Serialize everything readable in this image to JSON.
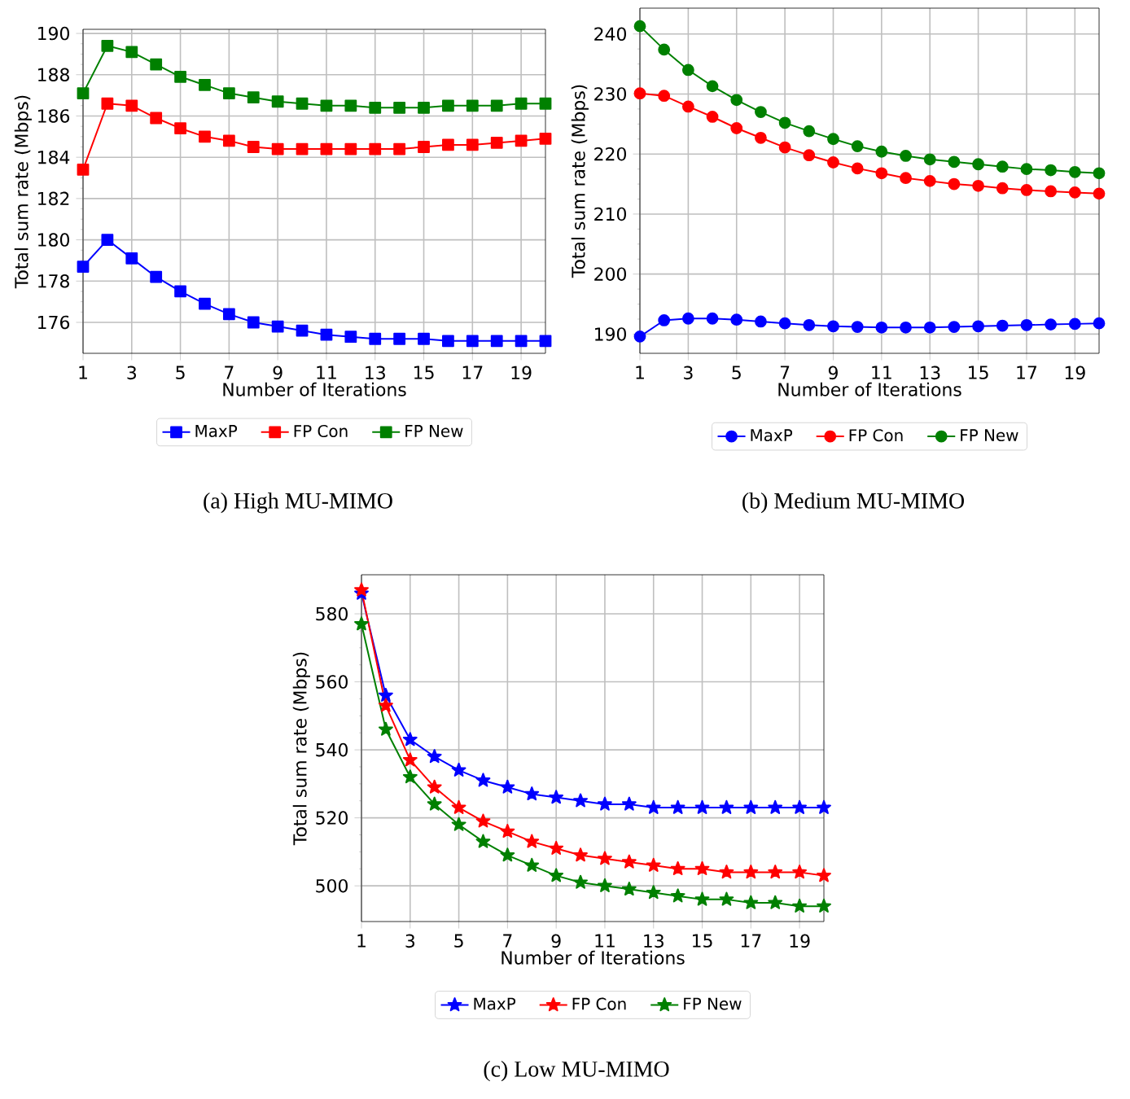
{
  "chart_data": [
    {
      "type": "line",
      "xlabel": "Number of Iterations",
      "ylabel": "Total sum rate (Mbps)",
      "annotations": [
        "(a) High MU-MIMO"
      ],
      "x": [
        1,
        2,
        3,
        4,
        5,
        6,
        7,
        8,
        9,
        10,
        11,
        12,
        13,
        14,
        15,
        16,
        17,
        18,
        19,
        20
      ],
      "xlim": [
        1,
        20
      ],
      "xticks": [
        1,
        3,
        5,
        7,
        9,
        11,
        13,
        15,
        17,
        19
      ],
      "ylim": [
        174.5,
        190.2
      ],
      "yticks": [
        176,
        178,
        180,
        182,
        184,
        186,
        188,
        190
      ],
      "grid": true,
      "legend": "bottom",
      "marker": "square",
      "line_style": "solid",
      "series": [
        {
          "name": "MaxP",
          "color": "#0000ff",
          "values": [
            178.7,
            180.0,
            179.1,
            178.2,
            177.5,
            176.9,
            176.4,
            176.0,
            175.8,
            175.6,
            175.4,
            175.3,
            175.2,
            175.2,
            175.2,
            175.1,
            175.1,
            175.1,
            175.1,
            175.1
          ]
        },
        {
          "name": "FP Con",
          "color": "#ff0000",
          "values": [
            183.4,
            186.6,
            186.5,
            185.9,
            185.4,
            185.0,
            184.8,
            184.5,
            184.4,
            184.4,
            184.4,
            184.4,
            184.4,
            184.4,
            184.5,
            184.6,
            184.6,
            184.7,
            184.8,
            184.9
          ]
        },
        {
          "name": "FP New",
          "color": "#008000",
          "values": [
            187.1,
            189.4,
            189.1,
            188.5,
            187.9,
            187.5,
            187.1,
            186.9,
            186.7,
            186.6,
            186.5,
            186.5,
            186.4,
            186.4,
            186.4,
            186.5,
            186.5,
            186.5,
            186.6,
            186.6
          ]
        }
      ]
    },
    {
      "type": "line",
      "xlabel": "Number of Iterations",
      "ylabel": "Total sum rate (Mbps)",
      "annotations": [
        "(b) Medium MU-MIMO"
      ],
      "x": [
        1,
        2,
        3,
        4,
        5,
        6,
        7,
        8,
        9,
        10,
        11,
        12,
        13,
        14,
        15,
        16,
        17,
        18,
        19,
        20
      ],
      "xlim": [
        1,
        20
      ],
      "xticks": [
        1,
        3,
        5,
        7,
        9,
        11,
        13,
        15,
        17,
        19
      ],
      "ylim": [
        186.8,
        244.3
      ],
      "yticks": [
        190,
        200,
        210,
        220,
        230,
        240
      ],
      "grid": true,
      "legend": "bottom",
      "marker": "circle",
      "line_style": "solid",
      "series": [
        {
          "name": "MaxP",
          "color": "#0000ff",
          "values": [
            189.6,
            192.3,
            192.6,
            192.6,
            192.4,
            192.1,
            191.8,
            191.5,
            191.3,
            191.2,
            191.1,
            191.1,
            191.1,
            191.2,
            191.3,
            191.4,
            191.5,
            191.6,
            191.7,
            191.8
          ]
        },
        {
          "name": "FP Con",
          "color": "#ff0000",
          "values": [
            230.1,
            229.7,
            227.9,
            226.2,
            224.3,
            222.7,
            221.1,
            219.8,
            218.6,
            217.6,
            216.8,
            216.0,
            215.5,
            215.0,
            214.7,
            214.3,
            214.0,
            213.8,
            213.6,
            213.4
          ]
        },
        {
          "name": "FP New",
          "color": "#008000",
          "values": [
            241.3,
            237.4,
            234.0,
            231.3,
            229.0,
            227.0,
            225.2,
            223.8,
            222.5,
            221.3,
            220.4,
            219.7,
            219.1,
            218.7,
            218.3,
            217.9,
            217.5,
            217.3,
            217.0,
            216.8
          ]
        }
      ]
    },
    {
      "type": "line",
      "xlabel": "Number of Iterations",
      "ylabel": "Total sum rate (Mbps)",
      "annotations": [
        "(c) Low MU-MIMO"
      ],
      "x": [
        1,
        2,
        3,
        4,
        5,
        6,
        7,
        8,
        9,
        10,
        11,
        12,
        13,
        14,
        15,
        16,
        17,
        18,
        19,
        20
      ],
      "xlim": [
        1,
        20
      ],
      "xticks": [
        1,
        3,
        5,
        7,
        9,
        11,
        13,
        15,
        17,
        19
      ],
      "ylim": [
        489.5,
        591.5
      ],
      "yticks": [
        500,
        520,
        540,
        560,
        580
      ],
      "grid": true,
      "legend": "bottom",
      "marker": "star",
      "line_style": "solid",
      "series": [
        {
          "name": "MaxP",
          "color": "#0000ff",
          "values": [
            586,
            556,
            543,
            538,
            534,
            531,
            529,
            527,
            526,
            525,
            524,
            524,
            523,
            523,
            523,
            523,
            523,
            523,
            523,
            523
          ]
        },
        {
          "name": "FP Con",
          "color": "#ff0000",
          "values": [
            587,
            553,
            537,
            529,
            523,
            519,
            516,
            513,
            511,
            509,
            508,
            507,
            506,
            505,
            505,
            504,
            504,
            504,
            504,
            503
          ]
        },
        {
          "name": "FP New",
          "color": "#008000",
          "values": [
            577,
            546,
            532,
            524,
            518,
            513,
            509,
            506,
            503,
            501,
            500,
            499,
            498,
            497,
            496,
            496,
            495,
            495,
            494,
            494
          ]
        }
      ]
    }
  ]
}
